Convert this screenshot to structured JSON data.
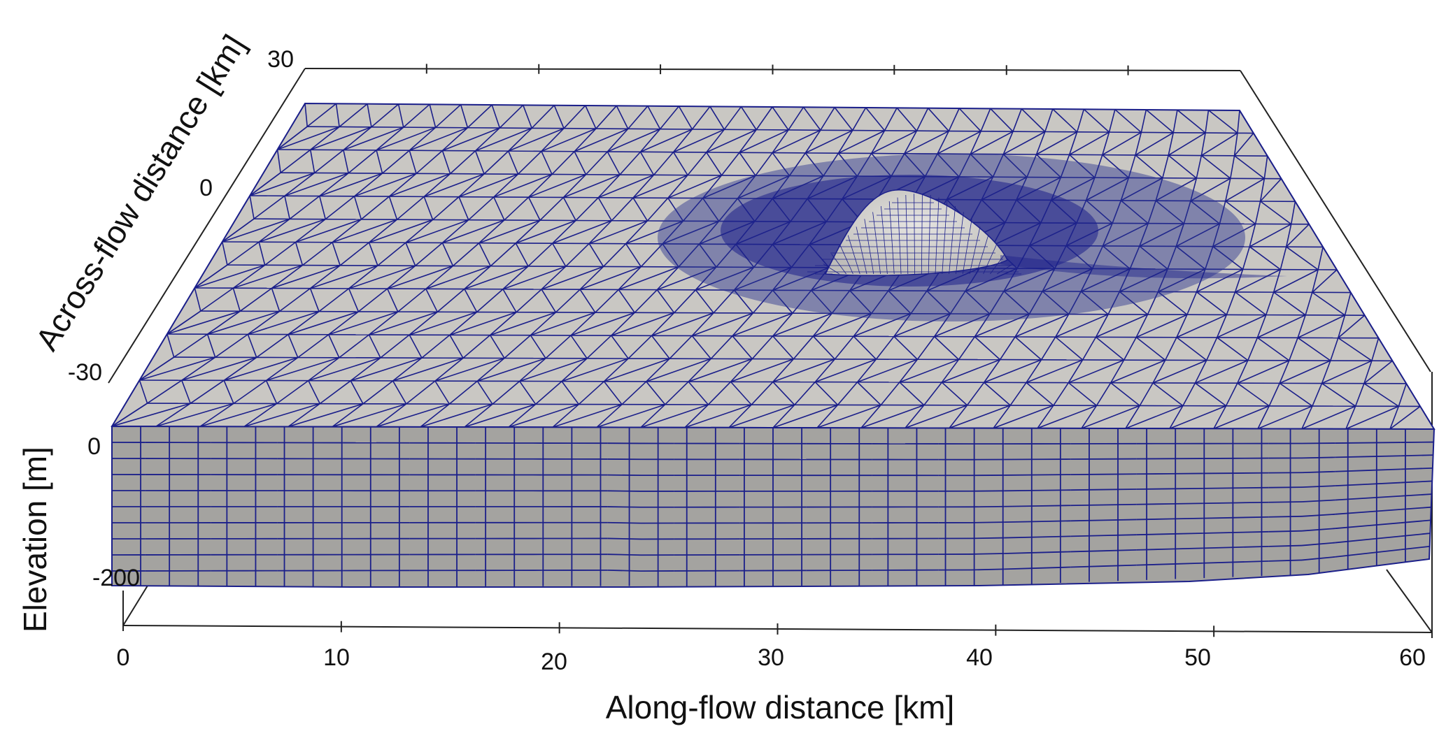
{
  "axes": {
    "along_flow": {
      "title": "Along-flow distance [km]",
      "unit": "km",
      "range": [
        0,
        60
      ],
      "ticks": [
        0,
        10,
        20,
        30,
        40,
        50,
        60
      ],
      "tick_labels": [
        "0",
        "10",
        "20",
        "30",
        "40",
        "50",
        "60"
      ]
    },
    "across_flow": {
      "title": "Across-flow distance [km]",
      "unit": "km",
      "range": [
        -30,
        30
      ],
      "ticks": [
        -30,
        0,
        30
      ],
      "tick_labels": [
        "-30",
        "0",
        "30"
      ]
    },
    "elevation": {
      "title": "Elevation [m]",
      "unit": "m",
      "range": [
        -200,
        0
      ],
      "ticks": [
        0,
        -200
      ],
      "tick_labels": [
        "0",
        "-200"
      ]
    }
  },
  "mesh": {
    "surface_color": "#c9c7c3",
    "side_color": "#a4a3a0",
    "edge_color": "#1b1f8a",
    "vertical_layers": 10,
    "refined_feature": {
      "along_flow_km": 37.5,
      "across_flow_km": -3,
      "description_visible": false
    }
  }
}
